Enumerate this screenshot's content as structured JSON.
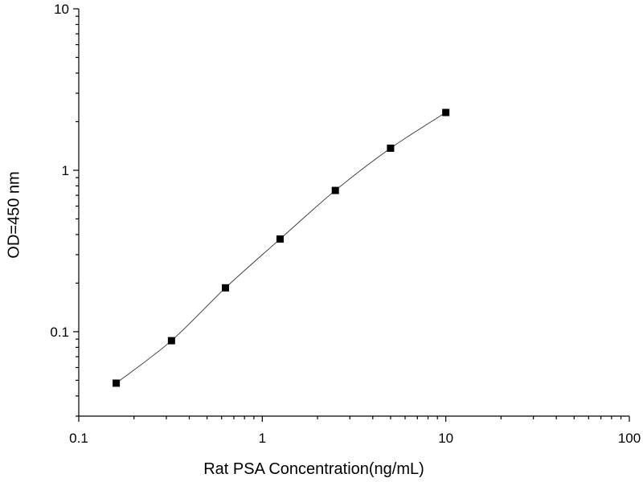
{
  "chart_data": {
    "type": "scatter",
    "xlabel": "Rat PSA Concentration(ng/mL)",
    "ylabel": "OD=450 nm",
    "x_scale": "log",
    "y_scale": "log",
    "xlim": [
      0.1,
      100
    ],
    "ylim": [
      0.03,
      10
    ],
    "x_ticks": [
      {
        "value": 0.1,
        "label": "0.1"
      },
      {
        "value": 1,
        "label": "1"
      },
      {
        "value": 10,
        "label": "10"
      },
      {
        "value": 100,
        "label": "100"
      }
    ],
    "y_ticks": [
      {
        "value": 0.1,
        "label": "0.1"
      },
      {
        "value": 1,
        "label": "1"
      },
      {
        "value": 10,
        "label": "10"
      }
    ],
    "grid": false,
    "legend": "none",
    "series": [
      {
        "color": "#000000",
        "marker": "square",
        "connected": true,
        "x": [
          0.16,
          0.32,
          0.63,
          1.25,
          2.5,
          5,
          10
        ],
        "y": [
          0.048,
          0.088,
          0.187,
          0.375,
          0.75,
          1.37,
          2.28
        ]
      }
    ]
  }
}
